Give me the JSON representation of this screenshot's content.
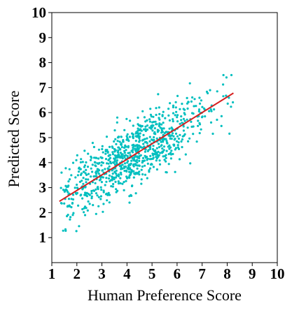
{
  "chart_data": {
    "type": "scatter",
    "title": "",
    "xlabel": "Human Preference Score",
    "ylabel": "Predicted Score",
    "xlim": [
      1,
      10
    ],
    "ylim": [
      0,
      10
    ],
    "xticks": [
      "1",
      "2",
      "3",
      "4",
      "5",
      "6",
      "7",
      "8",
      "9",
      "10"
    ],
    "yticks": [
      "1",
      "2",
      "3",
      "4",
      "5",
      "6",
      "7",
      "8",
      "9",
      "10"
    ],
    "grid": false,
    "legend": "none",
    "colors": {
      "points": "#00bfbf",
      "fit_line": "#d62020",
      "axes": "#000000"
    },
    "points": {
      "count": 900,
      "x_range": [
        1.3,
        8.3
      ],
      "y_range": [
        0.3,
        7.5
      ],
      "note_relationship": "positive linear trend"
    },
    "fit_line": {
      "x": [
        1.3,
        8.25
      ],
      "y": [
        2.45,
        6.78
      ]
    }
  }
}
